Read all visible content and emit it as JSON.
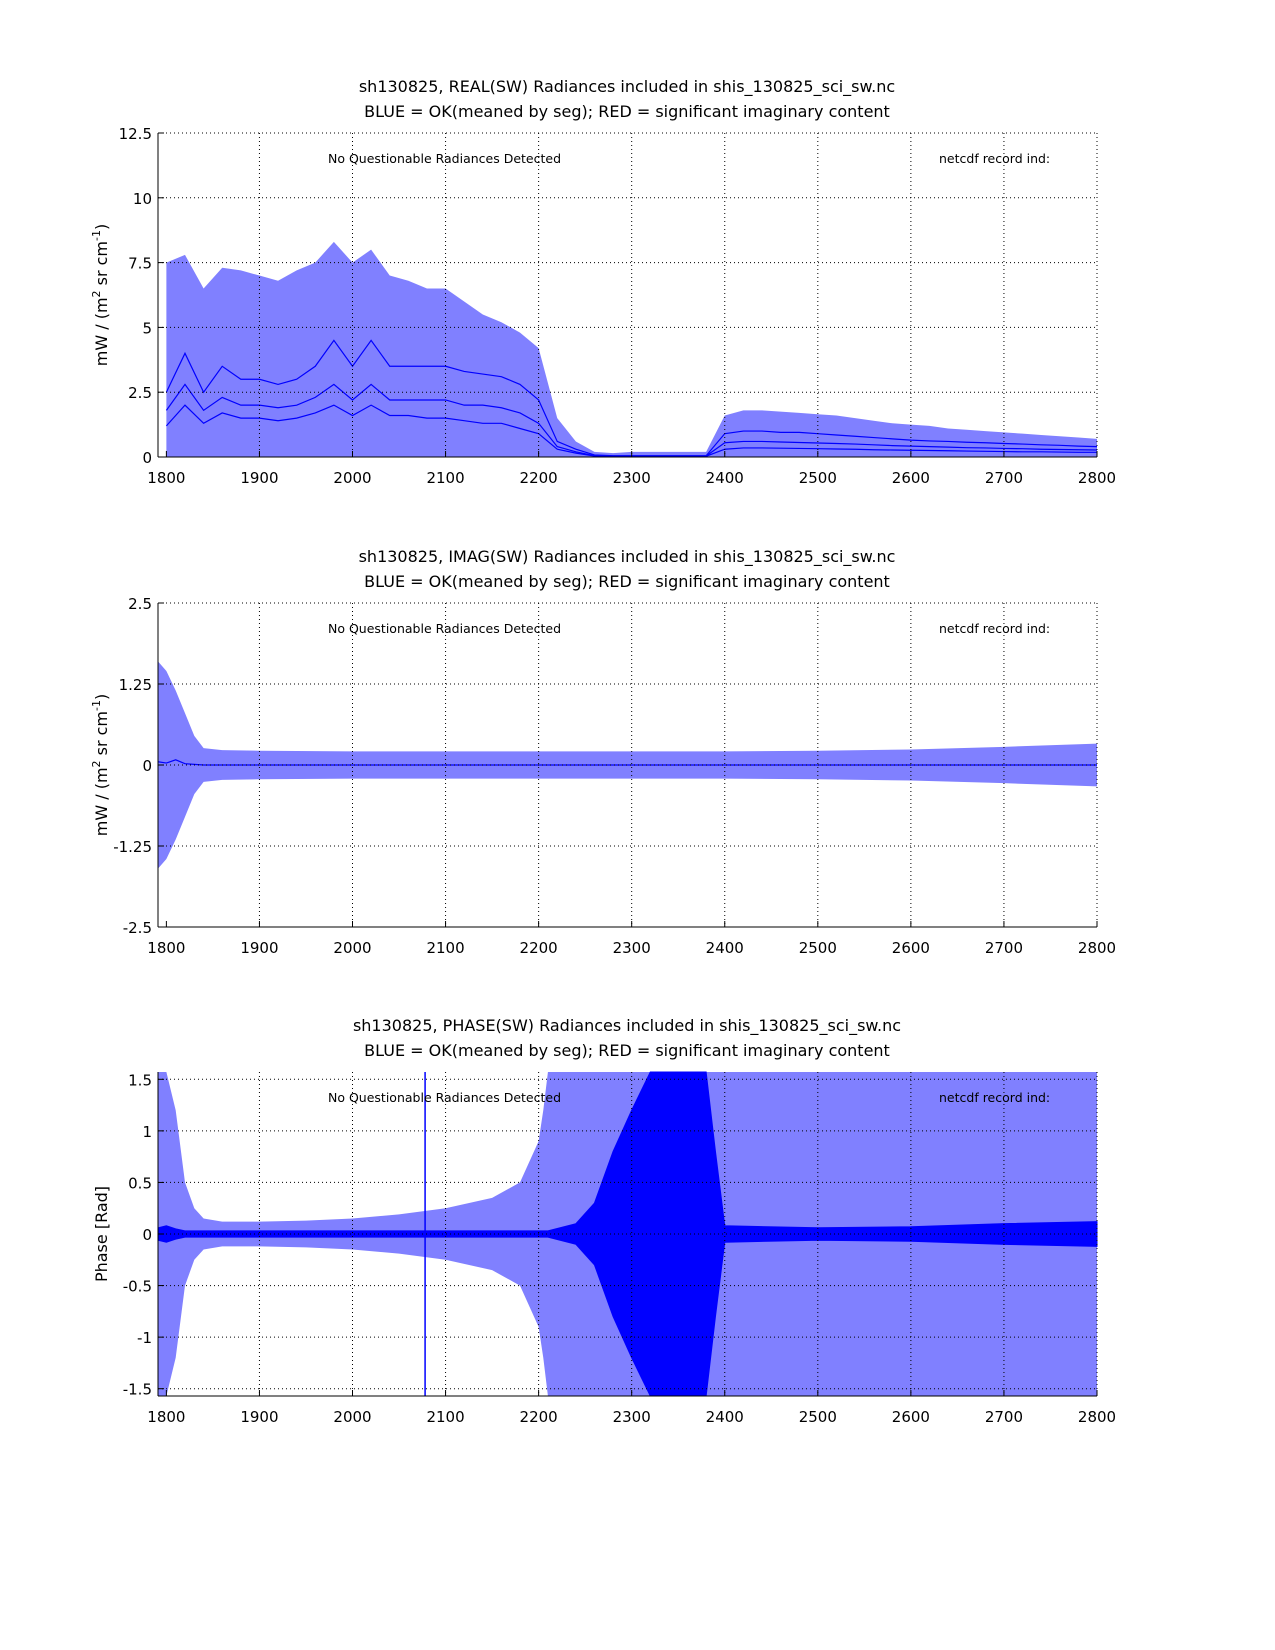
{
  "chart_data": [
    {
      "type": "area",
      "title": [
        "sh130825, REAL(SW) Radiances included in shis_130825_sci_sw.nc",
        "BLUE = OK(meaned by seg); RED = significant imaginary content"
      ],
      "xlabel": "",
      "ylabel": "mW / (m^2 sr cm^-1)",
      "xlim": [
        1791,
        2800
      ],
      "ylim": [
        0,
        12.5
      ],
      "xticks": [
        1800,
        1900,
        2000,
        2100,
        2200,
        2300,
        2400,
        2500,
        2600,
        2700,
        2800
      ],
      "yticks": [
        0,
        2.5,
        5,
        7.5,
        10,
        12.5
      ],
      "ytick_labels": [
        "0",
        "2.5",
        "5",
        "7.5",
        "10",
        "12.5"
      ],
      "grid": true,
      "annotations": [
        "No Questionable Radiances Detected",
        "netcdf record ind:"
      ],
      "x": [
        1800,
        1820,
        1840,
        1860,
        1880,
        1900,
        1920,
        1940,
        1960,
        1980,
        2000,
        2020,
        2040,
        2060,
        2080,
        2100,
        2120,
        2140,
        2160,
        2180,
        2200,
        2220,
        2240,
        2260,
        2280,
        2300,
        2320,
        2340,
        2360,
        2380,
        2400,
        2420,
        2440,
        2460,
        2480,
        2500,
        2520,
        2540,
        2560,
        2580,
        2600,
        2620,
        2640,
        2660,
        2680,
        2700,
        2720,
        2740,
        2760,
        2780,
        2800
      ],
      "series": [
        {
          "name": "envelope_upper",
          "color": "#8080ff",
          "values": [
            7.5,
            7.8,
            6.5,
            7.3,
            7.2,
            7.0,
            6.8,
            7.2,
            7.5,
            8.3,
            7.5,
            8.0,
            7.0,
            6.8,
            6.5,
            6.5,
            6.0,
            5.5,
            5.2,
            4.8,
            4.2,
            1.5,
            0.6,
            0.2,
            0.15,
            0.2,
            0.2,
            0.2,
            0.2,
            0.2,
            1.6,
            1.8,
            1.8,
            1.75,
            1.7,
            1.65,
            1.6,
            1.5,
            1.4,
            1.3,
            1.25,
            1.2,
            1.1,
            1.05,
            1.0,
            0.95,
            0.9,
            0.85,
            0.8,
            0.75,
            0.7
          ]
        },
        {
          "name": "envelope_lower",
          "color": "#8080ff",
          "values": [
            0,
            0,
            0,
            0,
            0,
            0,
            0,
            0,
            0,
            0,
            0,
            0,
            0,
            0,
            0,
            0,
            0,
            0,
            0,
            0,
            0,
            0,
            0,
            0,
            0,
            0,
            0,
            0,
            0,
            0,
            0,
            0,
            0,
            0,
            0,
            0,
            0,
            0,
            0,
            0,
            0,
            0,
            0,
            0,
            0,
            0,
            0,
            0,
            0,
            0,
            0
          ]
        },
        {
          "name": "seg_mean_1",
          "color": "#0000ff",
          "values": [
            2.5,
            4.0,
            2.5,
            3.5,
            3.0,
            3.0,
            2.8,
            3.0,
            3.5,
            4.5,
            3.5,
            4.5,
            3.5,
            3.5,
            3.5,
            3.5,
            3.3,
            3.2,
            3.1,
            2.8,
            2.2,
            0.6,
            0.3,
            0.08,
            0.05,
            0.05,
            0.05,
            0.05,
            0.05,
            0.05,
            0.9,
            1.0,
            1.0,
            0.95,
            0.95,
            0.9,
            0.85,
            0.8,
            0.75,
            0.7,
            0.65,
            0.62,
            0.6,
            0.57,
            0.55,
            0.52,
            0.5,
            0.47,
            0.45,
            0.42,
            0.4
          ]
        },
        {
          "name": "seg_mean_2",
          "color": "#0000ff",
          "values": [
            1.8,
            2.8,
            1.8,
            2.3,
            2.0,
            2.0,
            1.9,
            2.0,
            2.3,
            2.8,
            2.2,
            2.8,
            2.2,
            2.2,
            2.2,
            2.2,
            2.0,
            2.0,
            1.9,
            1.7,
            1.3,
            0.4,
            0.2,
            0.05,
            0.04,
            0.04,
            0.04,
            0.04,
            0.04,
            0.04,
            0.55,
            0.6,
            0.6,
            0.58,
            0.56,
            0.54,
            0.52,
            0.5,
            0.47,
            0.44,
            0.42,
            0.4,
            0.38,
            0.36,
            0.35,
            0.33,
            0.32,
            0.3,
            0.29,
            0.28,
            0.27
          ]
        },
        {
          "name": "seg_mean_3",
          "color": "#0000ff",
          "values": [
            1.2,
            2.0,
            1.3,
            1.7,
            1.5,
            1.5,
            1.4,
            1.5,
            1.7,
            2.0,
            1.6,
            2.0,
            1.6,
            1.6,
            1.5,
            1.5,
            1.4,
            1.3,
            1.3,
            1.1,
            0.9,
            0.3,
            0.15,
            0.04,
            0.03,
            0.03,
            0.03,
            0.03,
            0.03,
            0.03,
            0.3,
            0.35,
            0.35,
            0.34,
            0.33,
            0.32,
            0.31,
            0.3,
            0.28,
            0.27,
            0.26,
            0.25,
            0.24,
            0.23,
            0.22,
            0.21,
            0.2,
            0.2,
            0.19,
            0.18,
            0.18
          ]
        }
      ]
    },
    {
      "type": "area",
      "title": [
        "sh130825, IMAG(SW) Radiances included in shis_130825_sci_sw.nc",
        "BLUE = OK(meaned by seg); RED = significant imaginary content"
      ],
      "xlabel": "",
      "ylabel": "mW / (m^2 sr cm^-1)",
      "xlim": [
        1791,
        2800
      ],
      "ylim": [
        -2.5,
        2.5
      ],
      "xticks": [
        1800,
        1900,
        2000,
        2100,
        2200,
        2300,
        2400,
        2500,
        2600,
        2700,
        2800
      ],
      "yticks": [
        -2.5,
        -1.25,
        0,
        1.25,
        2.5
      ],
      "ytick_labels": [
        "-2.5",
        "-1.25",
        "0",
        "1.25",
        "2.5"
      ],
      "grid": true,
      "annotations": [
        "No Questionable Radiances Detected",
        "netcdf record ind:"
      ],
      "x": [
        1791,
        1800,
        1810,
        1820,
        1830,
        1840,
        1860,
        1900,
        2000,
        2100,
        2200,
        2300,
        2400,
        2500,
        2600,
        2700,
        2800
      ],
      "series": [
        {
          "name": "envelope_upper",
          "color": "#8080ff",
          "values": [
            1.6,
            1.45,
            1.15,
            0.8,
            0.45,
            0.26,
            0.23,
            0.22,
            0.21,
            0.21,
            0.21,
            0.21,
            0.21,
            0.22,
            0.24,
            0.28,
            0.33
          ]
        },
        {
          "name": "envelope_lower",
          "color": "#8080ff",
          "values": [
            -1.6,
            -1.45,
            -1.15,
            -0.8,
            -0.45,
            -0.26,
            -0.23,
            -0.22,
            -0.21,
            -0.21,
            -0.21,
            -0.21,
            -0.21,
            -0.22,
            -0.24,
            -0.28,
            -0.33
          ]
        },
        {
          "name": "seg_mean",
          "color": "#0000ff",
          "values": [
            0.05,
            0.03,
            0.08,
            0.02,
            0.01,
            0,
            0,
            0,
            0,
            0,
            0,
            0,
            0,
            0,
            0,
            0,
            0
          ]
        }
      ]
    },
    {
      "type": "area",
      "title": [
        "sh130825, PHASE(SW) Radiances included in shis_130825_sci_sw.nc",
        "BLUE = OK(meaned by seg); RED = significant imaginary content"
      ],
      "xlabel": "",
      "ylabel": "Phase [Rad]",
      "xlim": [
        1791,
        2800
      ],
      "ylim": [
        -1.5708,
        1.5708
      ],
      "xticks": [
        1800,
        1900,
        2000,
        2100,
        2200,
        2300,
        2400,
        2500,
        2600,
        2700,
        2800
      ],
      "yticks": [
        -1.5,
        -1,
        -0.5,
        0,
        0.5,
        1,
        1.5
      ],
      "ytick_labels": [
        "-1.5",
        "-1",
        "-0.5",
        "0",
        "0.5",
        "1",
        "1.5"
      ],
      "grid": true,
      "annotations": [
        "No Questionable Radiances Detected",
        "netcdf record ind:"
      ],
      "vertical_line_x": 2078,
      "x": [
        1791,
        1800,
        1810,
        1820,
        1830,
        1840,
        1860,
        1900,
        1950,
        2000,
        2050,
        2100,
        2150,
        2180,
        2200,
        2205,
        2210,
        2240,
        2260,
        2280,
        2300,
        2320,
        2340,
        2360,
        2380,
        2390,
        2400,
        2500,
        2600,
        2700,
        2800
      ],
      "series": [
        {
          "name": "envelope_upper",
          "color": "#8080ff",
          "values": [
            1.5708,
            1.5708,
            1.2,
            0.5,
            0.25,
            0.15,
            0.12,
            0.12,
            0.13,
            0.15,
            0.19,
            0.25,
            0.35,
            0.5,
            0.9,
            1.2,
            1.5708,
            1.5708,
            1.5708,
            1.5708,
            1.5708,
            1.5708,
            1.5708,
            1.5708,
            1.5708,
            1.5708,
            1.5708,
            1.5708,
            1.5708,
            1.5708,
            1.5708
          ]
        },
        {
          "name": "envelope_lower",
          "color": "#8080ff",
          "values": [
            -1.5708,
            -1.5708,
            -1.2,
            -0.5,
            -0.25,
            -0.15,
            -0.12,
            -0.12,
            -0.13,
            -0.15,
            -0.19,
            -0.25,
            -0.35,
            -0.5,
            -0.9,
            -1.2,
            -1.5708,
            -1.5708,
            -1.5708,
            -1.5708,
            -1.5708,
            -1.5708,
            -1.5708,
            -1.5708,
            -1.5708,
            -1.5708,
            -1.5708,
            -1.5708,
            -1.5708,
            -1.5708,
            -1.5708
          ]
        },
        {
          "name": "seg_mean_max",
          "color": "#0000ff",
          "values": [
            0.06,
            0.08,
            0.05,
            0.03,
            0.03,
            0.03,
            0.03,
            0.03,
            0.03,
            0.03,
            0.03,
            0.03,
            0.03,
            0.03,
            0.03,
            0.03,
            0.03,
            0.1,
            0.3,
            0.8,
            1.2,
            1.5708,
            1.5708,
            1.5708,
            1.5708,
            0.8,
            0.08,
            0.06,
            0.07,
            0.1,
            0.12
          ]
        },
        {
          "name": "seg_mean_min",
          "color": "#0000ff",
          "values": [
            -0.06,
            -0.08,
            -0.05,
            -0.03,
            -0.03,
            -0.03,
            -0.03,
            -0.03,
            -0.03,
            -0.03,
            -0.03,
            -0.03,
            -0.03,
            -0.03,
            -0.03,
            -0.03,
            -0.03,
            -0.1,
            -0.3,
            -0.8,
            -1.2,
            -1.5708,
            -1.5708,
            -1.5708,
            -1.5708,
            -0.8,
            -0.08,
            -0.06,
            -0.07,
            -0.1,
            -0.12
          ]
        }
      ]
    }
  ]
}
